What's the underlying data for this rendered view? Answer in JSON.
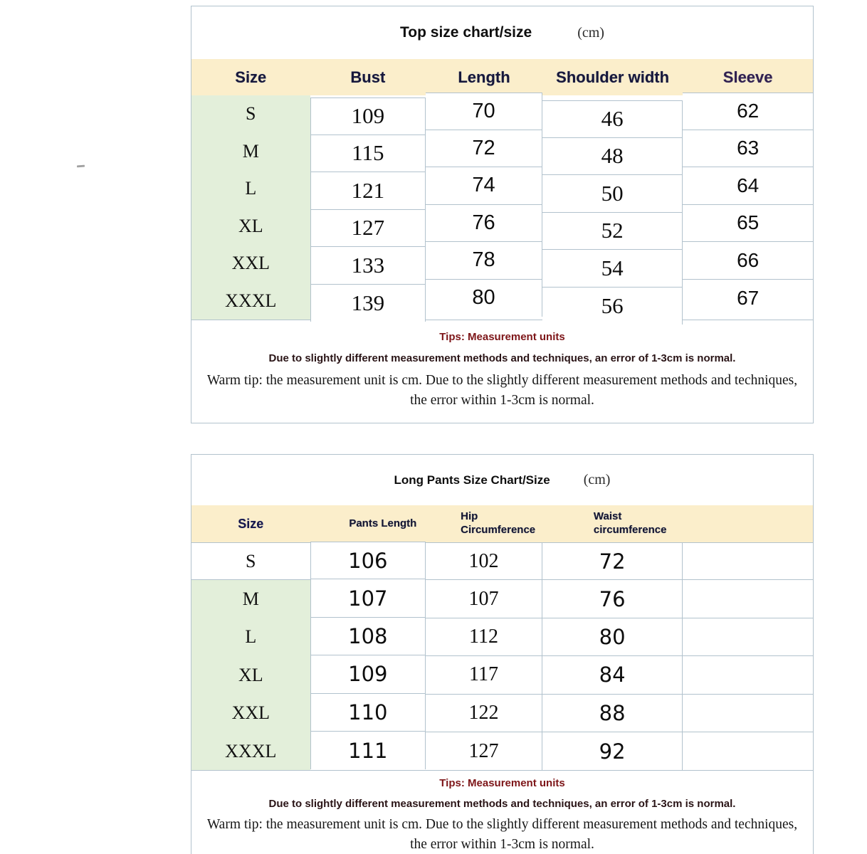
{
  "colors": {
    "header_bg": "#fbeecb",
    "size_column_bg": "#e3efda",
    "table_border": "#b2c2cd",
    "header_text": "#17173a",
    "tips_title": "#7d1518"
  },
  "top_chart": {
    "title": "Top size chart/size",
    "unit": "(cm)",
    "columns": [
      "Size",
      "Bust",
      "Length",
      "Shoulder width",
      "Sleeve"
    ],
    "rows": [
      {
        "size": "S",
        "bust": "109",
        "length": "70",
        "shoulder": "46",
        "sleeve": "62"
      },
      {
        "size": "M",
        "bust": "115",
        "length": "72",
        "shoulder": "48",
        "sleeve": "63"
      },
      {
        "size": "L",
        "bust": "121",
        "length": "74",
        "shoulder": "50",
        "sleeve": "64"
      },
      {
        "size": "XL",
        "bust": "127",
        "length": "76",
        "shoulder": "52",
        "sleeve": "65"
      },
      {
        "size": "XXL",
        "bust": "133",
        "length": "78",
        "shoulder": "54",
        "sleeve": "66"
      },
      {
        "size": "XXXL",
        "bust": "139",
        "length": "80",
        "shoulder": "56",
        "sleeve": "67"
      }
    ],
    "tips": {
      "title": "Tips: Measurement units",
      "line1": "Due to slightly different measurement methods and techniques, an error of 1-3cm is normal.",
      "line2": "Warm tip: the measurement unit is cm. Due to the slightly different measurement methods and techniques, the error within 1-3cm is normal."
    }
  },
  "pants_chart": {
    "title": "Long Pants Size Chart/Size",
    "unit": "(cm)",
    "columns": [
      "Size",
      "Pants Length",
      "Hip Circumference",
      "Waist circumference"
    ],
    "rows": [
      {
        "size": "S",
        "pants_length": "106",
        "hip": "102",
        "waist": "72"
      },
      {
        "size": "M",
        "pants_length": "107",
        "hip": "107",
        "waist": "76"
      },
      {
        "size": "L",
        "pants_length": "108",
        "hip": "112",
        "waist": "80"
      },
      {
        "size": "XL",
        "pants_length": "109",
        "hip": "117",
        "waist": "84"
      },
      {
        "size": "XXL",
        "pants_length": "110",
        "hip": "122",
        "waist": "88"
      },
      {
        "size": "XXXL",
        "pants_length": "111",
        "hip": "127",
        "waist": "92"
      }
    ],
    "tips": {
      "title": "Tips: Measurement units",
      "line1": "Due to slightly different measurement methods and techniques, an error of 1-3cm is normal.",
      "line2": "Warm tip: the measurement unit is cm. Due to the slightly different measurement methods and techniques, the error within 1-3cm is normal."
    }
  }
}
